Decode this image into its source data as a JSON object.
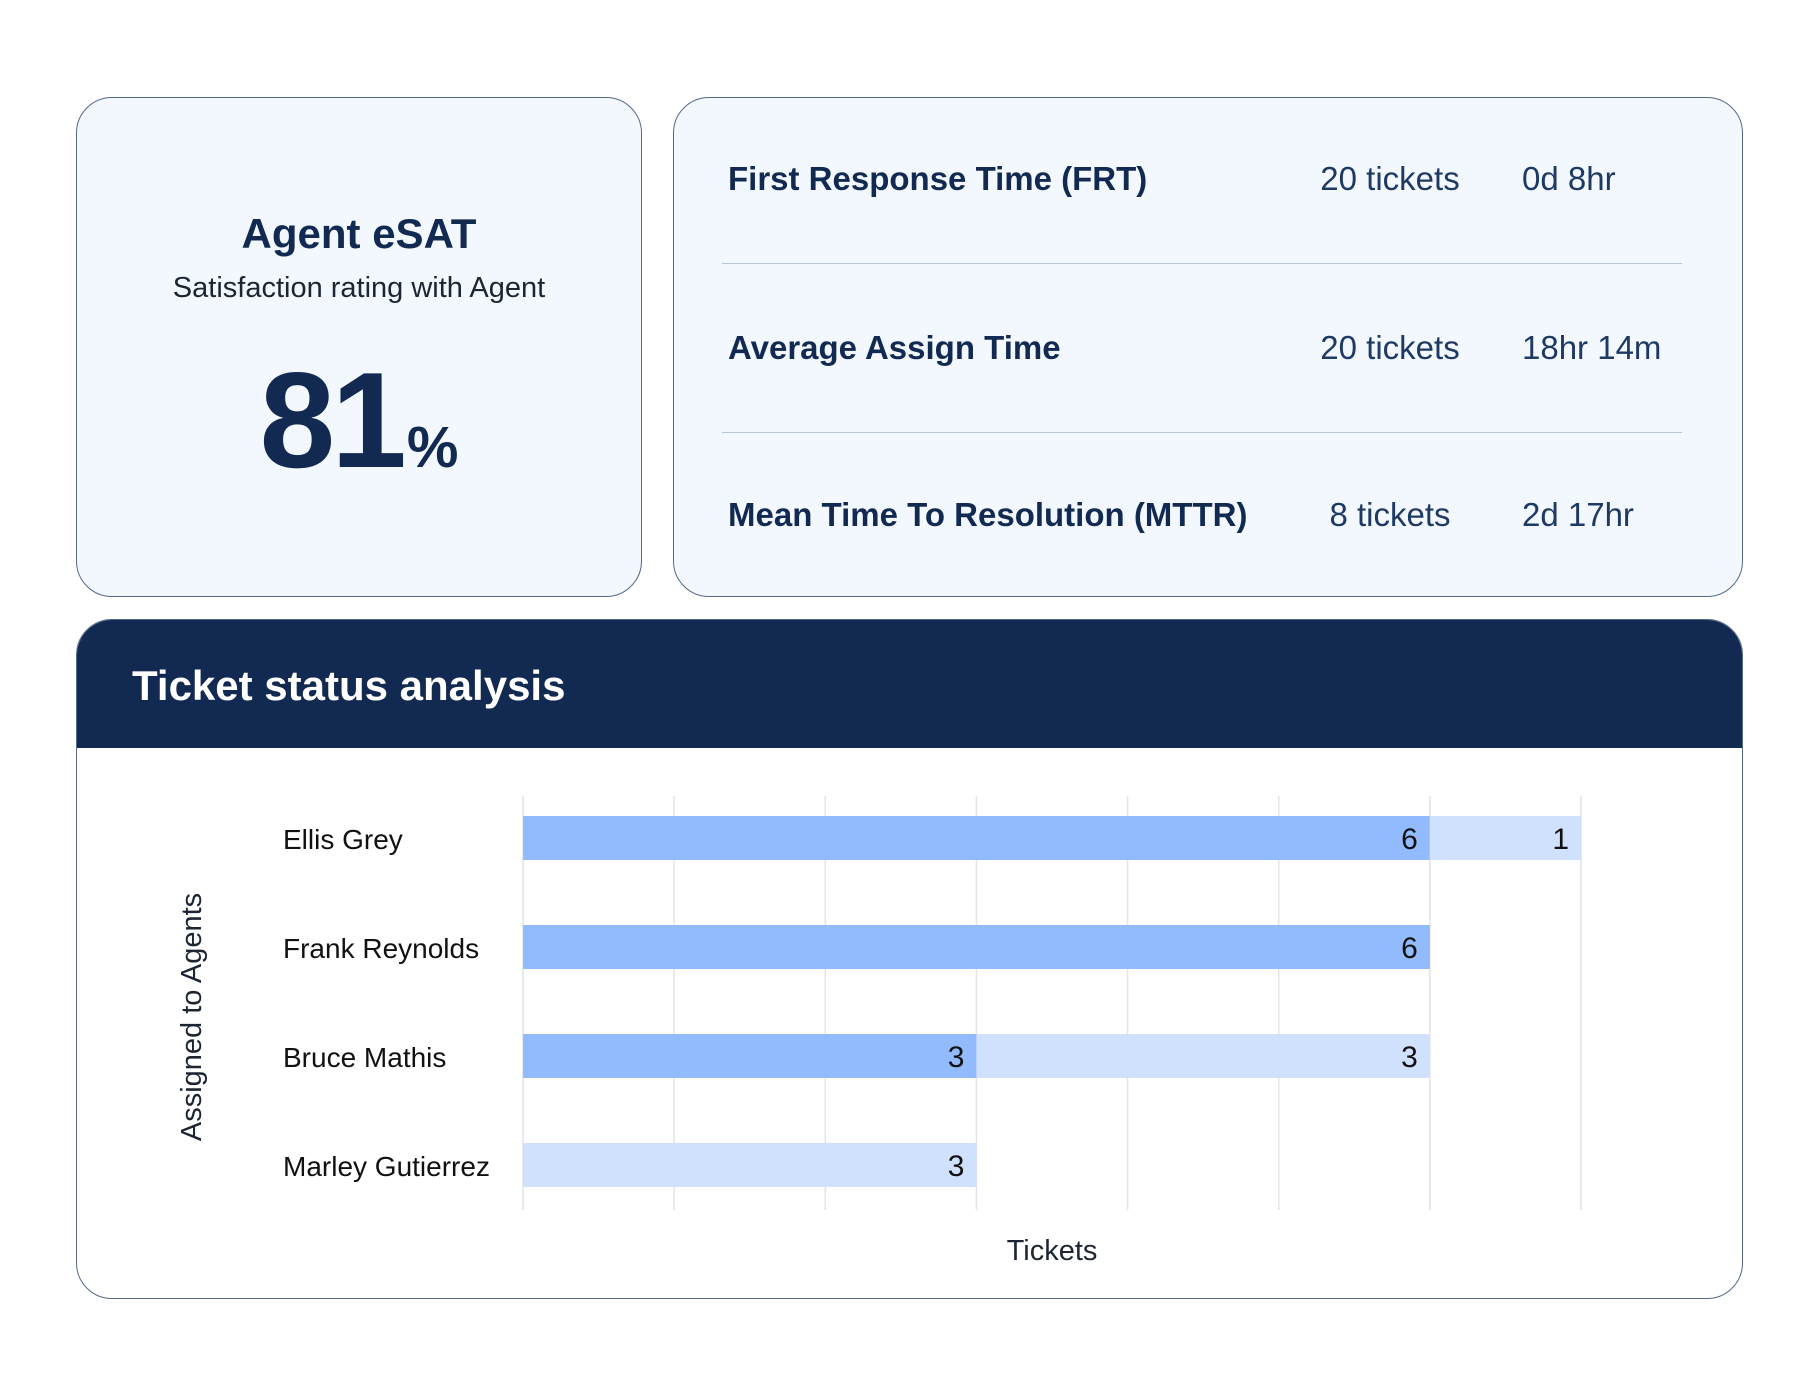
{
  "esat": {
    "title": "Agent eSAT",
    "subtitle": "Satisfaction rating with Agent",
    "value": "81",
    "unit": "%"
  },
  "metrics": [
    {
      "name": "First Response Time (FRT)",
      "count": "20 tickets",
      "value": "0d 8hr"
    },
    {
      "name": "Average Assign Time",
      "count": "20 tickets",
      "value": "18hr 14m"
    },
    {
      "name": "Mean Time To Resolution (MTTR)",
      "count": "8 tickets",
      "value": "2d 17hr"
    }
  ],
  "colors": {
    "navy": "#122a52",
    "series_a": "#91bbfd",
    "series_b": "#cfe1fd"
  },
  "chart_data": {
    "type": "bar",
    "orientation": "horizontal",
    "stacked": true,
    "title": "Ticket status analysis",
    "xlabel": "Tickets",
    "ylabel": "Assigned to Agents",
    "categories": [
      "Ellis Grey",
      "Frank Reynolds",
      "Bruce Mathis",
      "Marley Gutierrez"
    ],
    "series": [
      {
        "values": [
          6,
          6,
          3,
          0
        ],
        "color": "#91bbfd"
      },
      {
        "values": [
          1,
          0,
          3,
          3
        ],
        "color": "#cfe1fd"
      }
    ],
    "xlim": [
      0,
      7
    ],
    "grid": true,
    "legend": "none",
    "data_labels": true
  }
}
